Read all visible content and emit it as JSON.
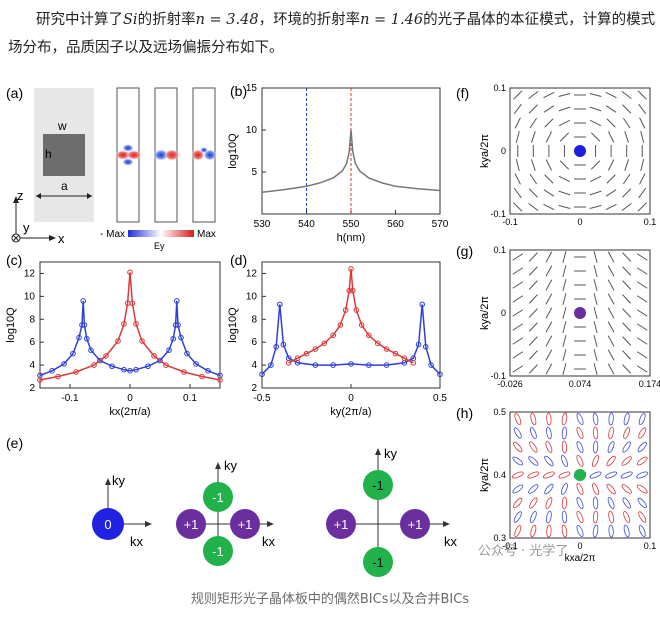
{
  "intro": {
    "part1": "研究中计算了",
    "si_symbol": "Si",
    "part2": "的折射率",
    "eq1": "n = 3.48",
    "part3": "，环境的折射率",
    "eq2": "n = 1.46",
    "part4": "的光子晶体的本征模式，计算的模式场分布，品质因子以及远场偏振分布如下。"
  },
  "panel_labels": {
    "a": "(a)",
    "b": "(b)",
    "c": "(c)",
    "d": "(d)",
    "e": "(e)",
    "f": "(f)",
    "g": "(g)",
    "h": "(h)"
  },
  "panel_a": {
    "w": "w",
    "h": "h",
    "a": "a",
    "z": "z",
    "y": "y",
    "x": "x",
    "colorbar_min": "- Max",
    "colorbar_max": "Max",
    "colorbar_label": "Ey"
  },
  "chart_data": [
    {
      "panel": "b",
      "type": "line",
      "xlabel": "h(nm)",
      "ylabel": "log10Q",
      "xlim": [
        530,
        570
      ],
      "ylim": [
        0,
        15
      ],
      "xticks": [
        530,
        540,
        550,
        560,
        570
      ],
      "yticks": [
        5,
        10,
        15
      ],
      "series": [
        {
          "x": [
            530,
            535,
            540,
            543,
            546,
            548,
            549,
            549.6,
            550,
            550.4,
            551,
            552,
            554,
            557,
            560,
            565,
            570
          ],
          "y": [
            2.6,
            2.9,
            3.3,
            3.7,
            4.3,
            5.1,
            6.0,
            7.4,
            10.0,
            7.4,
            6.0,
            5.1,
            4.3,
            3.7,
            3.3,
            3.0,
            2.8
          ]
        }
      ],
      "markers": [
        {
          "x": 540,
          "color": "#2f3fd8"
        },
        {
          "x": 550,
          "color": "#d93a3a"
        }
      ]
    },
    {
      "panel": "c",
      "type": "line",
      "xlabel": "kx(2π/a)",
      "ylabel": "log10Q",
      "xlim": [
        -0.15,
        0.15
      ],
      "ylim": [
        2,
        13
      ],
      "xticks": [
        -0.1,
        0,
        0.1
      ],
      "yticks": [
        2,
        4,
        6,
        8,
        10,
        12
      ],
      "series": [
        {
          "color": "#2f3fd8",
          "x": [
            -0.15,
            -0.13,
            -0.11,
            -0.095,
            -0.085,
            -0.08,
            -0.078,
            -0.076,
            -0.072,
            -0.065,
            -0.05,
            -0.03,
            -0.01,
            0,
            0.01,
            0.03,
            0.05,
            0.065,
            0.072,
            0.076,
            0.078,
            0.08,
            0.085,
            0.095,
            0.11,
            0.13,
            0.15
          ],
          "y": [
            3.1,
            3.5,
            4.1,
            5.0,
            6.4,
            7.5,
            9.6,
            7.5,
            6.3,
            5.3,
            4.4,
            3.9,
            3.6,
            3.5,
            3.6,
            3.9,
            4.4,
            5.3,
            6.3,
            7.5,
            9.6,
            7.5,
            6.4,
            5.0,
            4.1,
            3.5,
            3.1
          ]
        },
        {
          "color": "#d93a3a",
          "x": [
            -0.15,
            -0.12,
            -0.09,
            -0.06,
            -0.04,
            -0.02,
            -0.01,
            -0.004,
            0,
            0.004,
            0.01,
            0.02,
            0.04,
            0.06,
            0.09,
            0.12,
            0.15
          ],
          "y": [
            2.7,
            3.0,
            3.4,
            4.0,
            4.8,
            6.1,
            7.6,
            9.4,
            12.1,
            9.4,
            7.6,
            6.1,
            4.8,
            4.0,
            3.4,
            3.0,
            2.7
          ]
        }
      ]
    },
    {
      "panel": "d",
      "type": "line",
      "xlabel": "ky(2π/a)",
      "ylabel": "log10Q",
      "xlim": [
        -0.5,
        0.5
      ],
      "ylim": [
        2,
        13
      ],
      "xticks": [
        -0.5,
        0,
        0.5
      ],
      "yticks": [
        2,
        4,
        6,
        8,
        10,
        12
      ],
      "series": [
        {
          "color": "#2f3fd8",
          "x": [
            -0.5,
            -0.45,
            -0.42,
            -0.4,
            -0.38,
            -0.35,
            -0.3,
            -0.2,
            -0.1,
            0,
            0.1,
            0.2,
            0.3,
            0.35,
            0.38,
            0.4,
            0.42,
            0.45,
            0.5
          ],
          "y": [
            3.2,
            4.0,
            5.6,
            9.3,
            5.8,
            4.6,
            4.2,
            4.0,
            4.0,
            4.1,
            4.0,
            4.0,
            4.2,
            4.6,
            5.8,
            9.3,
            5.6,
            4.0,
            3.2
          ]
        },
        {
          "color": "#d93a3a",
          "x": [
            -0.35,
            -0.3,
            -0.25,
            -0.2,
            -0.15,
            -0.1,
            -0.06,
            -0.03,
            -0.01,
            0,
            0.01,
            0.03,
            0.06,
            0.1,
            0.15,
            0.2,
            0.25,
            0.3,
            0.35
          ],
          "y": [
            4.2,
            4.6,
            5.0,
            5.4,
            5.9,
            6.6,
            7.5,
            8.8,
            10.5,
            12.4,
            10.5,
            8.8,
            7.5,
            6.6,
            5.9,
            5.4,
            5.0,
            4.6,
            4.2
          ]
        }
      ]
    }
  ],
  "panel_e": {
    "ky": "ky",
    "kx": "kx",
    "blue_center": "0",
    "cross_top": "-1",
    "cross_bottom": "-1",
    "cross_left": "+1",
    "cross_right": "+1",
    "merged_top": "-1",
    "merged_bottom": "-1",
    "merged_left": "+1",
    "merged_right": "+1",
    "blue_color": "#1f22e0",
    "green_color": "#22b24c",
    "purple_color": "#6a2e9e"
  },
  "panel_f": {
    "ylabel": "kya/2π",
    "yticks": [
      "0.1",
      "0",
      "-0.1"
    ],
    "xticks": [
      "-0.1",
      "0",
      "0.1"
    ],
    "dot_color": "#1a1fe0"
  },
  "panel_g": {
    "ylabel": "kya/2π",
    "yticks": [
      "0.1",
      "0",
      "-0.1"
    ],
    "xticks": [
      "-0.026",
      "0.074",
      "0.174"
    ],
    "dot_color": "#6a2e9e"
  },
  "panel_h": {
    "ylabel": "kya/2π",
    "yticks": [
      "0.5",
      "0.4",
      "0.3"
    ],
    "xticks": [
      "-0.1",
      "0",
      "0.1"
    ],
    "xlabel": "kxa/2π",
    "dot_color": "#22b24c"
  },
  "watermark": "公众号 · 光学了",
  "caption": "规则矩形光子晶体板中的偶然BICs以及合并BICs"
}
